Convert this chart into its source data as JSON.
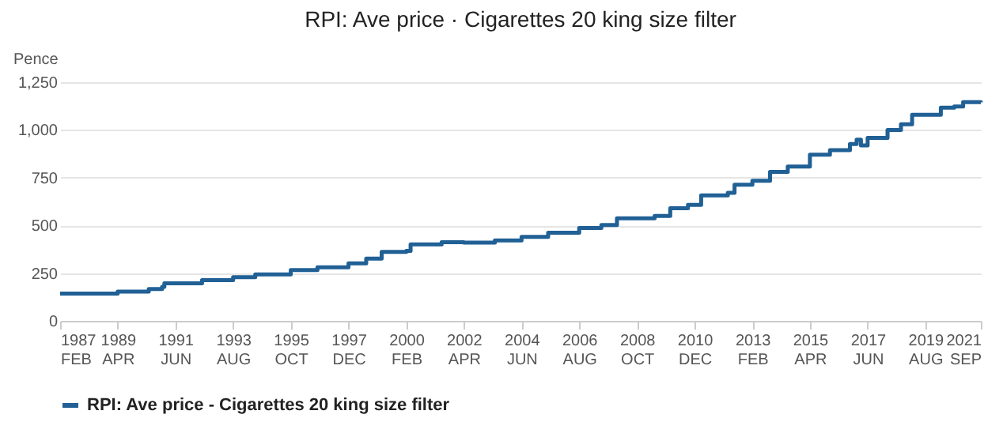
{
  "chart_data": {
    "type": "step",
    "title": "RPI: Ave price  · Cigarettes 20 king size filter",
    "ylabel": "Pence",
    "x": [
      "1987-02",
      "1989-04",
      "1990-06",
      "1990-12",
      "1991-01",
      "1992-06",
      "1993-08",
      "1994-06",
      "1995-10",
      "1996-10",
      "1997-12",
      "1998-08",
      "1999-03",
      "2000-02",
      "2000-04",
      "2001-06",
      "2002-04",
      "2003-06",
      "2004-06",
      "2005-06",
      "2006-08",
      "2007-06",
      "2008-01",
      "2008-10",
      "2009-06",
      "2010-01",
      "2010-09",
      "2011-03",
      "2012-03",
      "2012-06",
      "2013-02",
      "2013-10",
      "2014-06",
      "2015-04",
      "2016-01",
      "2016-10",
      "2017-01",
      "2017-03",
      "2017-06",
      "2018-03",
      "2018-09",
      "2019-02",
      "2019-08",
      "2020-03",
      "2020-09",
      "2021-01",
      "2021-09"
    ],
    "series": [
      {
        "name": "RPI: Ave price - Cigarettes 20 king size filter",
        "color": "#206095",
        "values": [
          143,
          153,
          167,
          178,
          197,
          213,
          229,
          243,
          266,
          280,
          301,
          326,
          361,
          366,
          400,
          412,
          410,
          421,
          440,
          461,
          486,
          502,
          537,
          537,
          549,
          590,
          607,
          657,
          671,
          713,
          734,
          780,
          808,
          870,
          894,
          926,
          949,
          919,
          958,
          1000,
          1030,
          1079,
          1079,
          1116,
          1123,
          1146,
          1144
        ]
      }
    ],
    "xlim": [
      "1987-02",
      "2021-09"
    ],
    "xticks": [
      {
        "value": "1987-02",
        "label": "1987 FEB"
      },
      {
        "value": "1989-04",
        "label": "1989 APR"
      },
      {
        "value": "1991-06",
        "label": "1991 JUN"
      },
      {
        "value": "1993-08",
        "label": "1993 AUG"
      },
      {
        "value": "1995-10",
        "label": "1995 OCT"
      },
      {
        "value": "1997-12",
        "label": "1997 DEC"
      },
      {
        "value": "2000-02",
        "label": "2000 FEB"
      },
      {
        "value": "2002-04",
        "label": "2002 APR"
      },
      {
        "value": "2004-06",
        "label": "2004 JUN"
      },
      {
        "value": "2006-08",
        "label": "2006 AUG"
      },
      {
        "value": "2008-10",
        "label": "2008 OCT"
      },
      {
        "value": "2010-12",
        "label": "2010 DEC"
      },
      {
        "value": "2013-02",
        "label": "2013 FEB"
      },
      {
        "value": "2015-04",
        "label": "2015 APR"
      },
      {
        "value": "2017-06",
        "label": "2017 JUN"
      },
      {
        "value": "2019-08",
        "label": "2019 AUG"
      },
      {
        "value": "2021-09",
        "label": "2021 SEP"
      }
    ],
    "ylim": [
      0,
      1250
    ],
    "yticks": [
      {
        "value": 0,
        "label": "0"
      },
      {
        "value": 250,
        "label": "250"
      },
      {
        "value": 500,
        "label": "500"
      },
      {
        "value": 750,
        "label": "750"
      },
      {
        "value": 1000,
        "label": "1,000"
      },
      {
        "value": 1250,
        "label": "1,250"
      }
    ],
    "grid": "y",
    "legend": "bottom",
    "marker": "none",
    "line_style": "solid"
  }
}
